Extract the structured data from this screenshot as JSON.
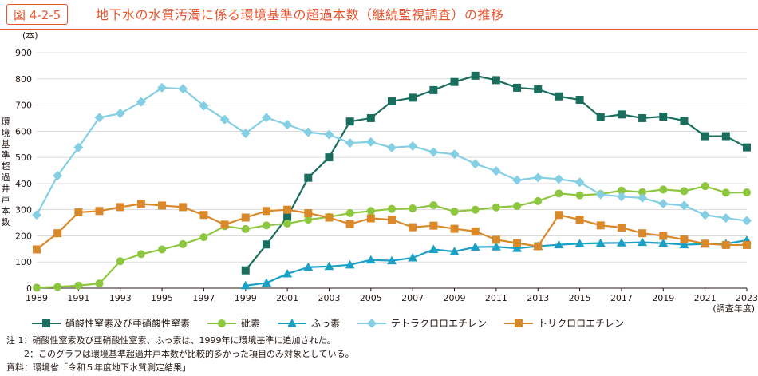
{
  "header": {
    "figure_number": "図 4-2-5",
    "title": "地下水の水質汚濁に係る環境基準の超過本数（継続監視調査）の推移"
  },
  "chart_data": {
    "type": "line",
    "y_unit": "(本)",
    "ylabel": "環境基準超過井戸本数",
    "xlabel": "(調査年度)",
    "ylim": [
      0,
      900
    ],
    "yticks": [
      0,
      100,
      200,
      300,
      400,
      500,
      600,
      700,
      800,
      900
    ],
    "xlim": [
      1989,
      2023
    ],
    "xticks": [
      1989,
      1991,
      1993,
      1995,
      1997,
      1999,
      2001,
      2003,
      2005,
      2007,
      2009,
      2011,
      2013,
      2015,
      2017,
      2019,
      2021,
      2023
    ],
    "grid": "horizontal",
    "series": [
      {
        "name": "硝酸性窒素及び亜硝酸性窒素",
        "color": "#1a6e5e",
        "marker": "square",
        "x": [
          1999,
          2000,
          2001,
          2002,
          2003,
          2004,
          2005,
          2006,
          2007,
          2008,
          2009,
          2010,
          2011,
          2012,
          2013,
          2014,
          2015,
          2016,
          2017,
          2018,
          2019,
          2020,
          2021,
          2022,
          2023
        ],
        "y": [
          68,
          167,
          272,
          422,
          500,
          637,
          650,
          714,
          728,
          757,
          788,
          812,
          795,
          766,
          760,
          733,
          720,
          653,
          664,
          650,
          656,
          640,
          581,
          581,
          538
        ]
      },
      {
        "name": "砒素",
        "color": "#8dc63f",
        "marker": "circle",
        "x": [
          1989,
          1990,
          1991,
          1992,
          1993,
          1994,
          1995,
          1996,
          1997,
          1998,
          1999,
          2000,
          2001,
          2002,
          2003,
          2004,
          2005,
          2006,
          2007,
          2008,
          2009,
          2010,
          2011,
          2012,
          2013,
          2014,
          2015,
          2016,
          2017,
          2018,
          2019,
          2020,
          2021,
          2022,
          2023
        ],
        "y": [
          2,
          5,
          10,
          18,
          103,
          130,
          148,
          168,
          195,
          237,
          226,
          240,
          247,
          262,
          272,
          287,
          295,
          303,
          305,
          317,
          293,
          300,
          309,
          314,
          333,
          362,
          355,
          360,
          373,
          367,
          377,
          371,
          390,
          365,
          366
        ]
      },
      {
        "name": "ふっ素",
        "color": "#1ba1c6",
        "marker": "triangle",
        "x": [
          1999,
          2000,
          2001,
          2002,
          2003,
          2004,
          2005,
          2006,
          2007,
          2008,
          2009,
          2010,
          2011,
          2012,
          2013,
          2014,
          2015,
          2016,
          2017,
          2018,
          2019,
          2020,
          2021,
          2022,
          2023
        ],
        "y": [
          10,
          20,
          55,
          80,
          83,
          89,
          108,
          105,
          116,
          148,
          140,
          157,
          158,
          152,
          160,
          166,
          170,
          172,
          173,
          175,
          172,
          166,
          169,
          170,
          183
        ]
      },
      {
        "name": "テトラクロロエチレン",
        "color": "#85cfe5",
        "marker": "diamond",
        "x": [
          1989,
          1990,
          1991,
          1992,
          1993,
          1994,
          1995,
          1996,
          1997,
          1998,
          1999,
          2000,
          2001,
          2002,
          2003,
          2004,
          2005,
          2006,
          2007,
          2008,
          2009,
          2010,
          2011,
          2012,
          2013,
          2014,
          2015,
          2016,
          2017,
          2018,
          2019,
          2020,
          2021,
          2022,
          2023
        ],
        "y": [
          280,
          430,
          538,
          652,
          668,
          712,
          766,
          762,
          697,
          645,
          592,
          652,
          625,
          596,
          587,
          555,
          559,
          537,
          543,
          520,
          512,
          475,
          448,
          413,
          423,
          417,
          405,
          358,
          350,
          345,
          323,
          316,
          280,
          268,
          258
        ]
      },
      {
        "name": "トリクロロエチレン",
        "color": "#d9882a",
        "marker": "square",
        "x": [
          1989,
          1990,
          1991,
          1992,
          1993,
          1994,
          1995,
          1996,
          1997,
          1998,
          1999,
          2000,
          2001,
          2002,
          2003,
          2004,
          2005,
          2006,
          2007,
          2008,
          2009,
          2010,
          2011,
          2012,
          2013,
          2014,
          2015,
          2016,
          2017,
          2018,
          2019,
          2020,
          2021,
          2022,
          2023
        ],
        "y": [
          148,
          210,
          290,
          295,
          310,
          322,
          316,
          310,
          280,
          243,
          270,
          295,
          300,
          287,
          270,
          245,
          267,
          262,
          233,
          239,
          227,
          217,
          185,
          172,
          160,
          280,
          262,
          240,
          232,
          210,
          200,
          186,
          170,
          165,
          165
        ]
      }
    ]
  },
  "notes": [
    "注 1：硝酸性窒素及び亜硝酸性窒素、ふっ素は、1999年に環境基準に追加された。",
    "　　2：このグラフは環境基準超過井戸本数が比較的多かった項目のみ対象としている。",
    "資料：環境省「令和５年度地下水質測定結果」"
  ]
}
